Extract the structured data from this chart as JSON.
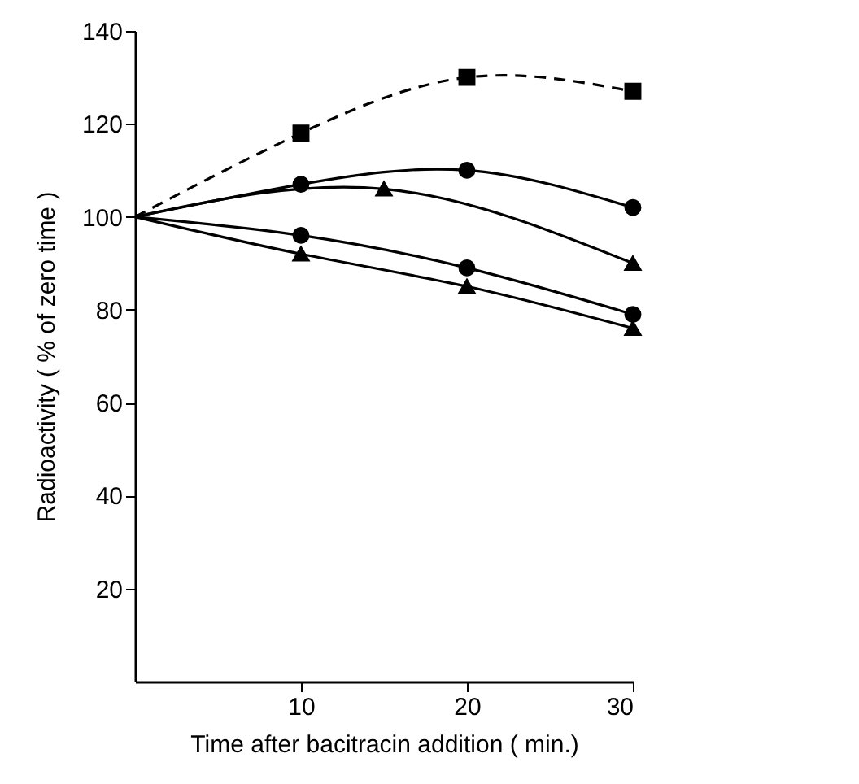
{
  "chart_data": {
    "type": "line",
    "xlabel": "Time after bacitracin addition  ( min.)",
    "ylabel": "Radioactivity  ( % of zero time )",
    "xlim": [
      0,
      30
    ],
    "ylim": [
      0,
      140
    ],
    "xticks": [
      10,
      20,
      30
    ],
    "yticks": [
      20,
      40,
      60,
      80,
      100,
      120,
      140
    ],
    "grid": false,
    "series": [
      {
        "color": "#000000",
        "marker": "square",
        "line_style": "dashed",
        "x": [
          0,
          10,
          20,
          30
        ],
        "values": [
          100,
          118,
          130,
          127
        ]
      },
      {
        "color": "#000000",
        "marker": "circle",
        "line_style": "solid",
        "x": [
          0,
          10,
          20,
          30
        ],
        "values": [
          100,
          107,
          110,
          102
        ]
      },
      {
        "color": "#000000",
        "marker": "triangle",
        "line_style": "solid",
        "x": [
          0,
          15,
          30
        ],
        "values": [
          100,
          106,
          90
        ]
      },
      {
        "color": "#000000",
        "marker": "circle",
        "line_style": "solid",
        "x": [
          0,
          10,
          20,
          30
        ],
        "values": [
          100,
          96,
          89,
          79
        ]
      },
      {
        "color": "#000000",
        "marker": "triangle",
        "line_style": "solid",
        "x": [
          0,
          10,
          20,
          30
        ],
        "values": [
          100,
          92,
          85,
          76
        ]
      }
    ]
  }
}
